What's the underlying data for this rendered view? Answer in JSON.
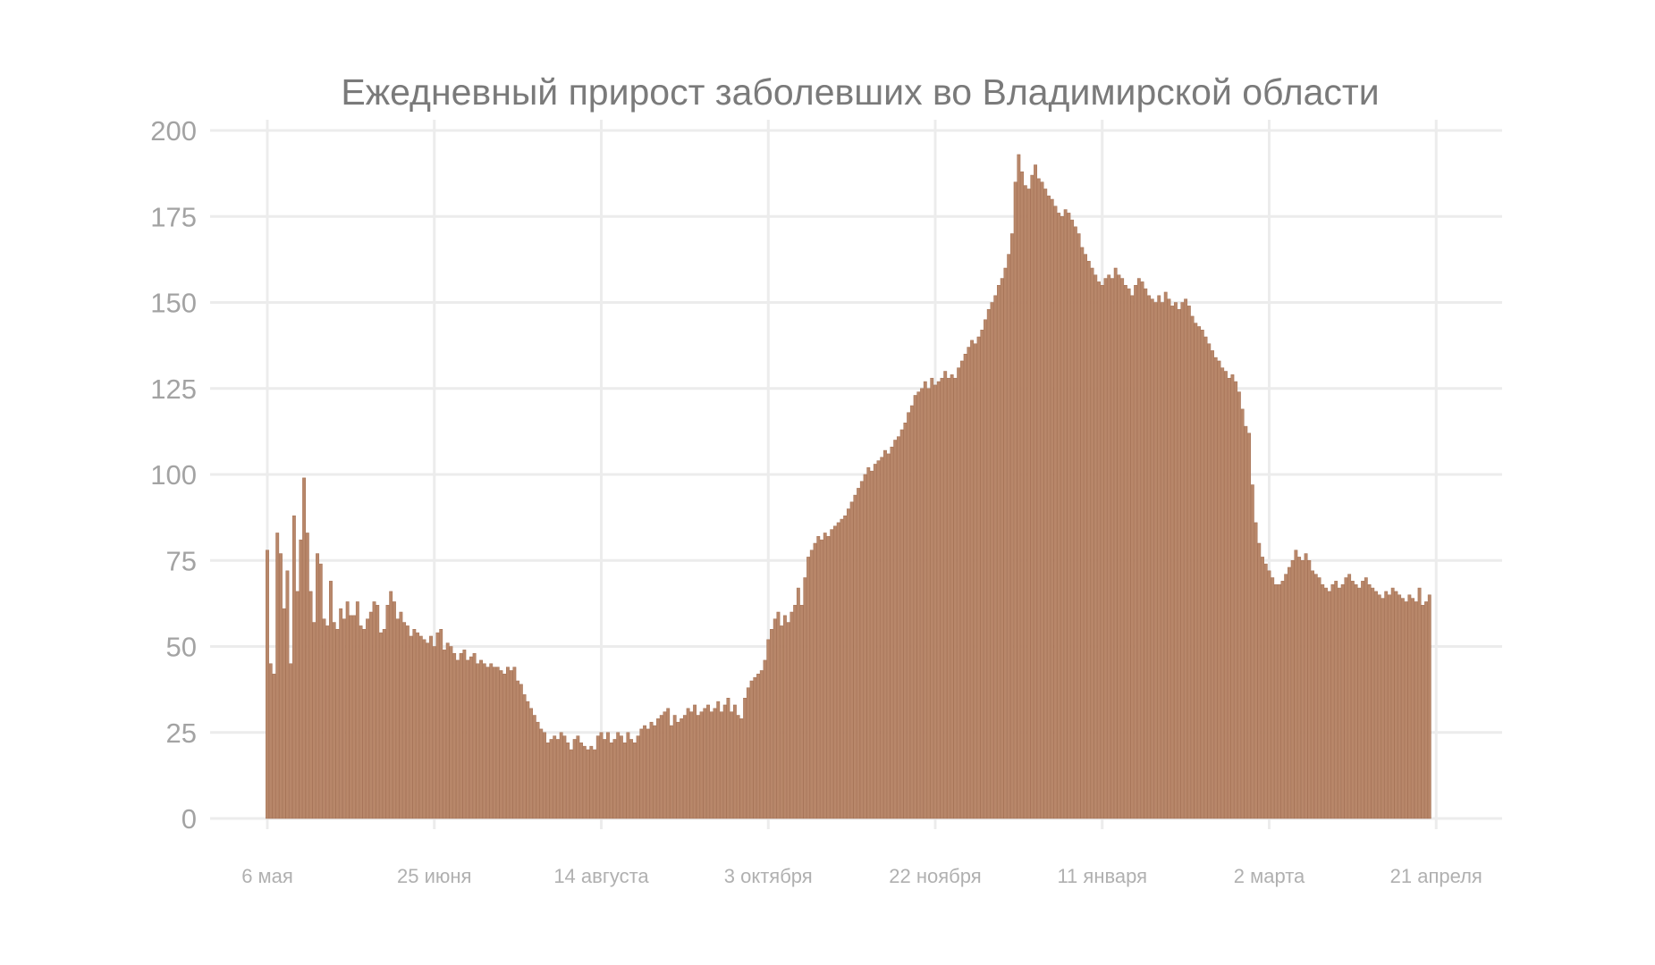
{
  "chart_data": {
    "type": "bar",
    "title": "Ежедневный прирост заболевших во Владимирской области",
    "xlabel": "",
    "ylabel": "",
    "ylim": [
      0,
      200
    ],
    "yticks": [
      0,
      25,
      50,
      75,
      100,
      125,
      150,
      175,
      200
    ],
    "grid": true,
    "legend": "none",
    "bar_color": "#b8876a",
    "xticks": [
      {
        "label": "6 мая",
        "date": "2020-05-06"
      },
      {
        "label": "25 июня",
        "date": "2020-06-25"
      },
      {
        "label": "14 августа",
        "date": "2020-08-14"
      },
      {
        "label": "3 октября",
        "date": "2020-10-03"
      },
      {
        "label": "22 ноября",
        "date": "2020-11-22"
      },
      {
        "label": "11 января",
        "date": "2021-01-11"
      },
      {
        "label": "2 марта",
        "date": "2021-03-02"
      },
      {
        "label": "21 апреля",
        "date": "2021-04-21"
      }
    ],
    "series": [
      {
        "start_date": "2020-05-06",
        "values": [
          78,
          45,
          42,
          83,
          77,
          61,
          72,
          45,
          88,
          66,
          81,
          99,
          83,
          66,
          57,
          77,
          74,
          58,
          56,
          69,
          57,
          55,
          61,
          58,
          63,
          59,
          59,
          63,
          56,
          55,
          58,
          60,
          63,
          62,
          54,
          55,
          62,
          66,
          63,
          58,
          60,
          57,
          56,
          53,
          55,
          54,
          53,
          52,
          51,
          53,
          50,
          54,
          55,
          49,
          51,
          50,
          48,
          46,
          48,
          49,
          46,
          47,
          48,
          45,
          46,
          45,
          44,
          45,
          44,
          44,
          43,
          42,
          44,
          43,
          44,
          40,
          39,
          36,
          34,
          32,
          30,
          28,
          26,
          25,
          22,
          23,
          24,
          23,
          25,
          24,
          22,
          20,
          23,
          24,
          22,
          21,
          20,
          21,
          20,
          24,
          25,
          23,
          25,
          22,
          23,
          25,
          24,
          22,
          25,
          23,
          22,
          24,
          26,
          27,
          26,
          28,
          27,
          29,
          30,
          31,
          32,
          27,
          30,
          28,
          29,
          30,
          32,
          31,
          33,
          30,
          31,
          32,
          33,
          31,
          32,
          34,
          31,
          33,
          35,
          31,
          33,
          30,
          29,
          35,
          38,
          40,
          41,
          42,
          43,
          46,
          52,
          55,
          58,
          60,
          56,
          59,
          57,
          60,
          62,
          67,
          62,
          70,
          76,
          78,
          80,
          82,
          81,
          83,
          82,
          84,
          85,
          86,
          87,
          88,
          90,
          92,
          94,
          96,
          98,
          100,
          102,
          101,
          103,
          104,
          105,
          107,
          106,
          108,
          110,
          111,
          113,
          115,
          118,
          120,
          123,
          124,
          125,
          127,
          125,
          128,
          126,
          127,
          128,
          130,
          128,
          129,
          128,
          131,
          133,
          135,
          137,
          139,
          138,
          140,
          142,
          145,
          148,
          150,
          152,
          155,
          157,
          160,
          164,
          170,
          185,
          193,
          188,
          184,
          183,
          187,
          190,
          186,
          185,
          183,
          181,
          180,
          178,
          176,
          175,
          177,
          176,
          174,
          172,
          170,
          166,
          164,
          162,
          160,
          158,
          156,
          155,
          157,
          158,
          157,
          160,
          158,
          157,
          155,
          154,
          152,
          155,
          157,
          156,
          154,
          152,
          151,
          150,
          152,
          150,
          153,
          151,
          149,
          150,
          148,
          150,
          151,
          149,
          146,
          144,
          143,
          142,
          140,
          138,
          136,
          134,
          133,
          131,
          130,
          128,
          129,
          127,
          124,
          119,
          114,
          112,
          97,
          86,
          80,
          76,
          74,
          72,
          70,
          68,
          68,
          69,
          71,
          73,
          75,
          78,
          76,
          75,
          77,
          75,
          72,
          71,
          70,
          68,
          67,
          66,
          68,
          69,
          67,
          68,
          70,
          71,
          69,
          68,
          67,
          69,
          70,
          68,
          67,
          66,
          65,
          64,
          66,
          65,
          67,
          66,
          65,
          64,
          63,
          65,
          64,
          63,
          67,
          62,
          63,
          65
        ]
      }
    ]
  }
}
